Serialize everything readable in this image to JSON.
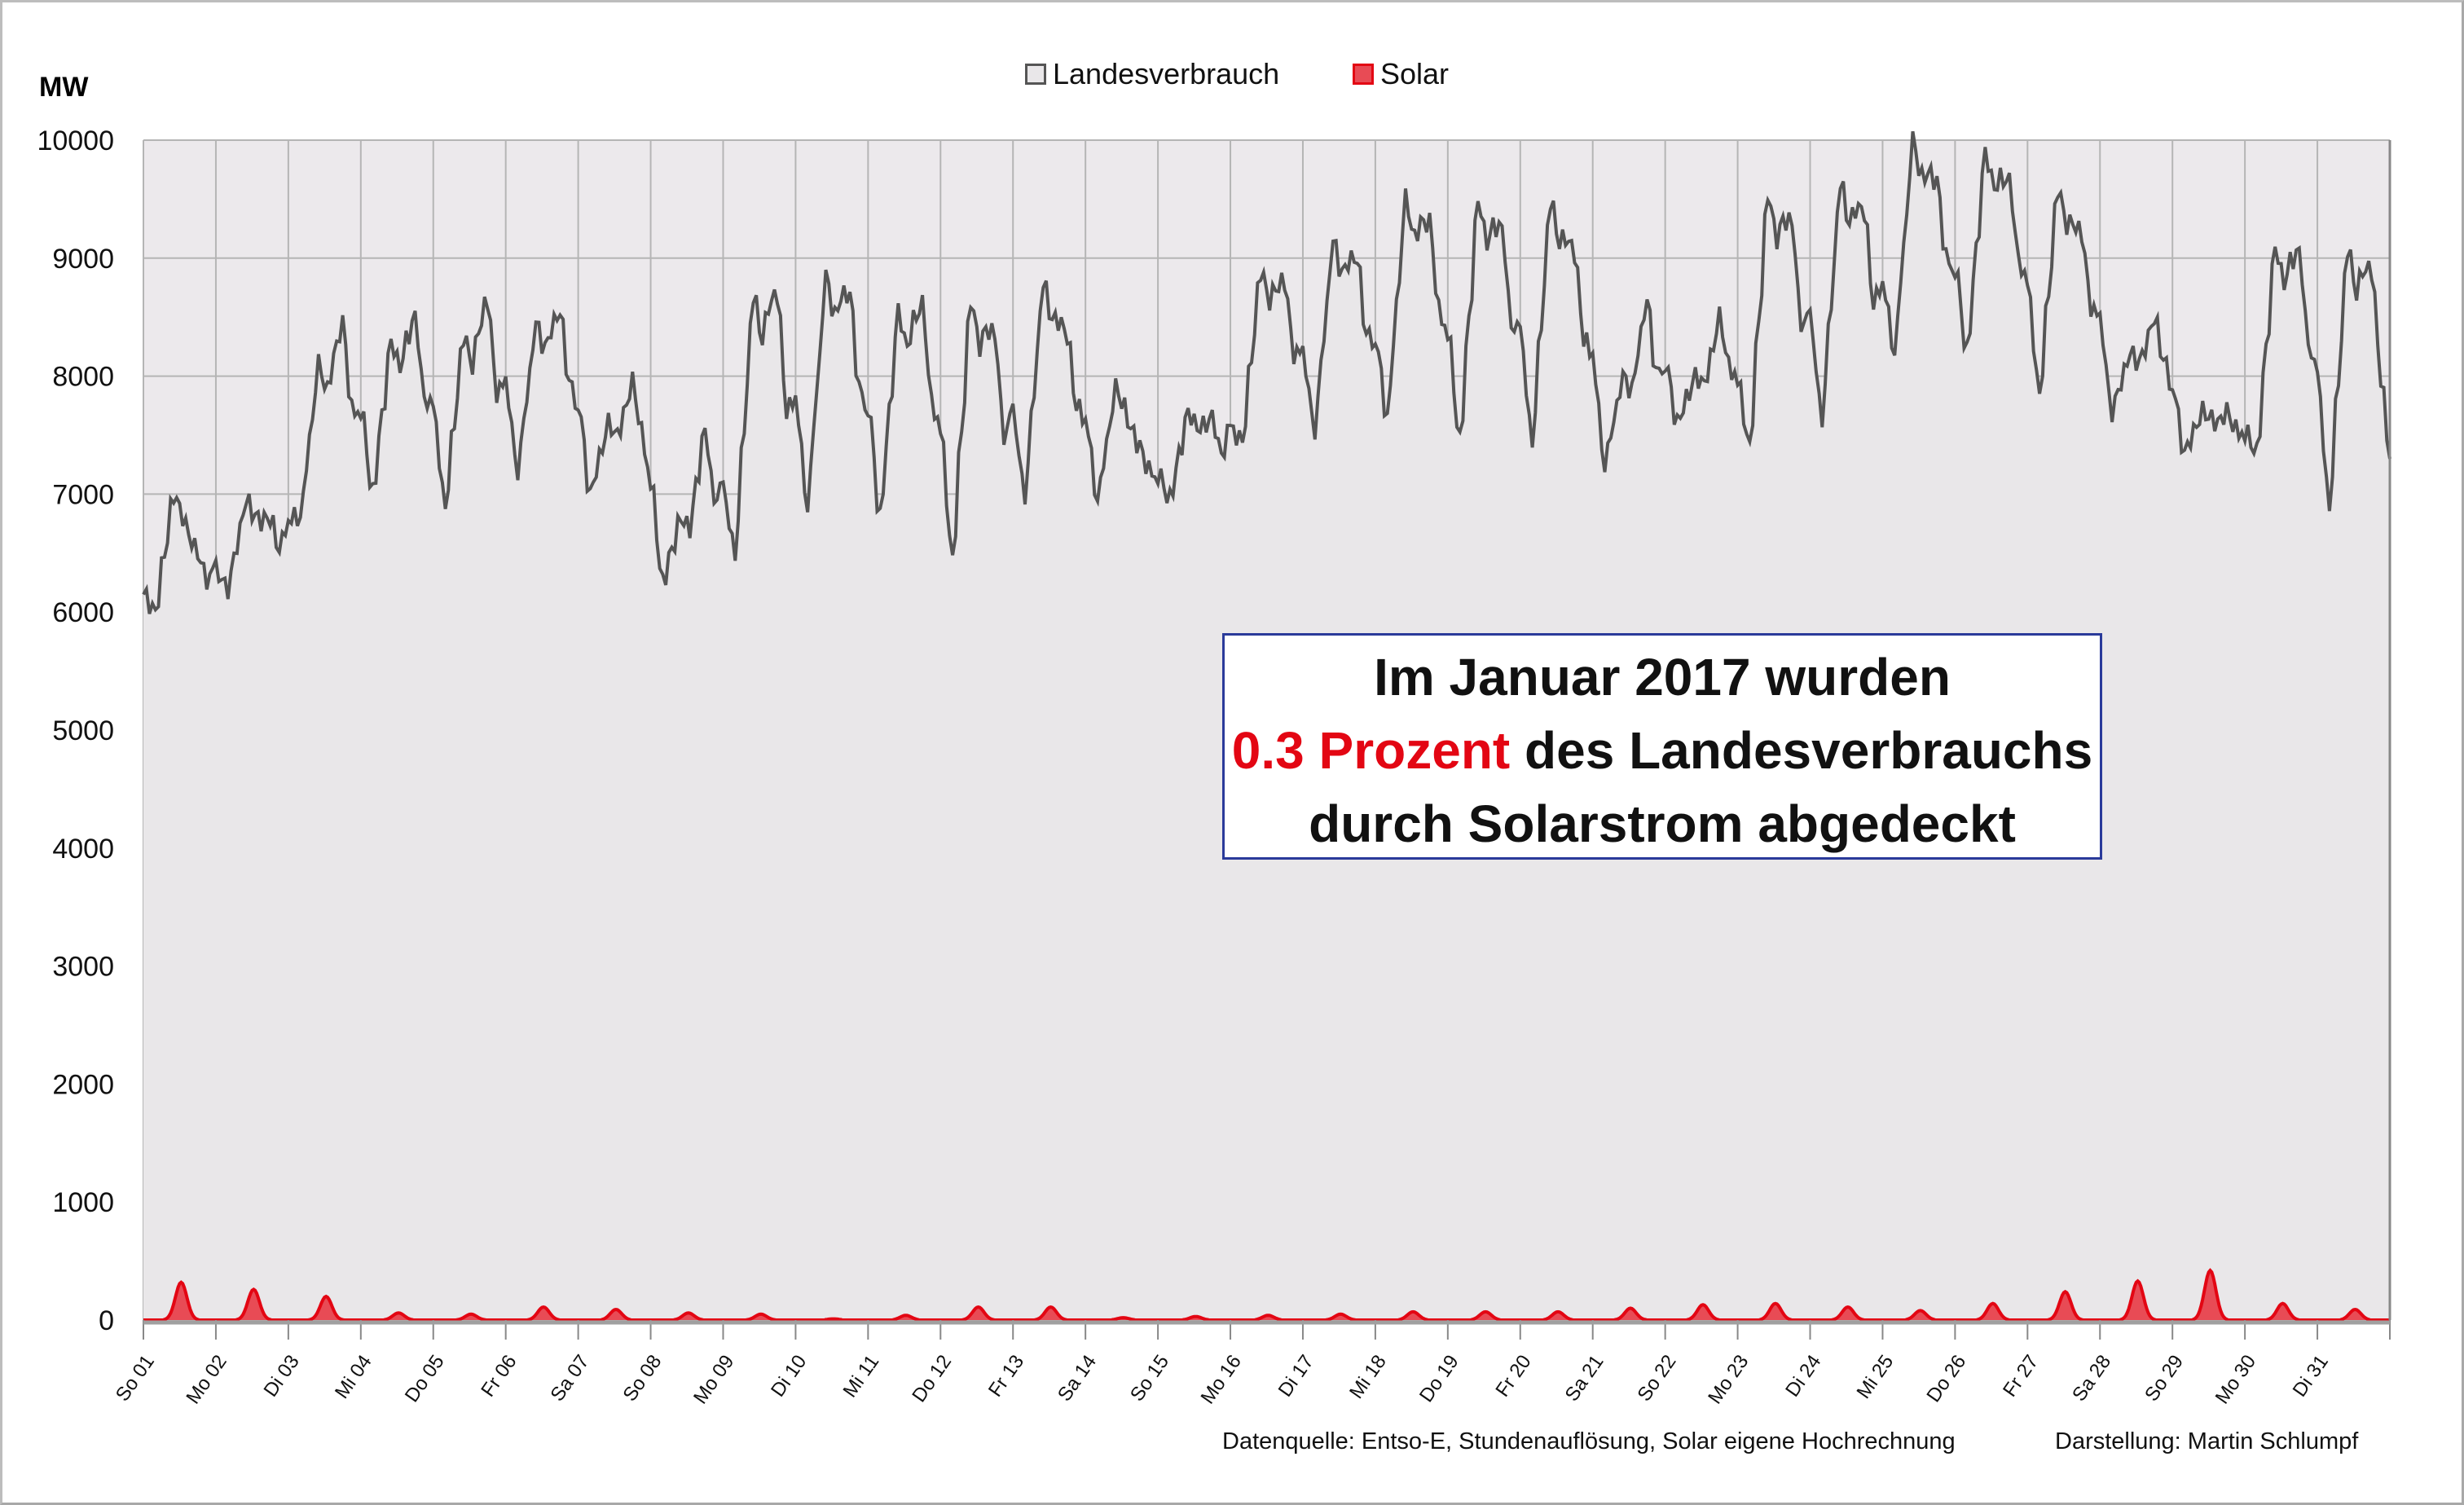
{
  "chart_data": {
    "type": "area",
    "ylabel": "MW",
    "ylim": [
      0,
      10000
    ],
    "yticks": [
      "0",
      "1000",
      "2000",
      "3000",
      "4000",
      "5000",
      "6000",
      "7000",
      "8000",
      "9000",
      "10000"
    ],
    "categories": [
      "So 01",
      "Mo 02",
      "Di 03",
      "Mi 04",
      "Do 05",
      "Fr 06",
      "Sa 07",
      "So 08",
      "Mo 09",
      "Di 10",
      "Mi 11",
      "Do 12",
      "Fr 13",
      "Sa 14",
      "So 15",
      "Mo 16",
      "Di 17",
      "Mi 18",
      "Do 19",
      "Fr 20",
      "Sa 21",
      "So 22",
      "Mo 23",
      "Di 24",
      "Mi 25",
      "Do 26",
      "Fr 27",
      "Sa 28",
      "So 29",
      "Mo 30",
      "Di 31"
    ],
    "series": [
      {
        "name": "Landesverbrauch",
        "color": "#555555",
        "fill": "#e9e7e9",
        "night_min": [
          6000,
          6200,
          6800,
          7000,
          6900,
          7200,
          7000,
          6250,
          6500,
          6900,
          6800,
          6450,
          7000,
          6950,
          6950,
          7450,
          7550,
          7650,
          7450,
          7450,
          7250,
          7600,
          7400,
          7650,
          8200,
          8200,
          7850,
          7700,
          7350,
          7350,
          6900
        ],
        "morning_peak": [
          7000,
          6950,
          8100,
          8300,
          8350,
          8450,
          7600,
          6800,
          8700,
          8850,
          8550,
          8650,
          8800,
          7900,
          7700,
          8900,
          9150,
          9500,
          9500,
          9500,
          8000,
          8000,
          9550,
          9650,
          10000,
          9900,
          9600,
          8200,
          7700,
          9100,
          9100
        ],
        "evening_peak": [
          6500,
          6800,
          8450,
          8500,
          8650,
          8550,
          7950,
          7550,
          8700,
          8700,
          8600,
          8350,
          8350,
          7400,
          7650,
          8800,
          9000,
          9300,
          9250,
          9050,
          8650,
          8500,
          9300,
          9400,
          9650,
          9650,
          9200,
          8500,
          7700,
          9050,
          8900
        ],
        "end_value": 7300
      },
      {
        "name": "Solar",
        "color": "#e30613",
        "fill": "#e84b55",
        "daily_peak": [
          320,
          260,
          200,
          60,
          50,
          110,
          90,
          60,
          50,
          10,
          40,
          110,
          110,
          20,
          30,
          40,
          50,
          70,
          70,
          70,
          100,
          130,
          140,
          110,
          80,
          140,
          240,
          330,
          420,
          140,
          90
        ]
      }
    ],
    "legend": "top",
    "grid": true,
    "annotation": {
      "line1": "Im Januar 2017 wurden",
      "highlight": "0.3 Prozent",
      "line2_rest": " des Landesverbrauchs",
      "line3": "durch Solarstrom abgedeckt"
    }
  },
  "footer": {
    "source": "Datenquelle: Entso-E, Stundenauflösung, Solar eigene Hochrechnung",
    "credit": "Darstellung: Martin Schlumpf"
  }
}
